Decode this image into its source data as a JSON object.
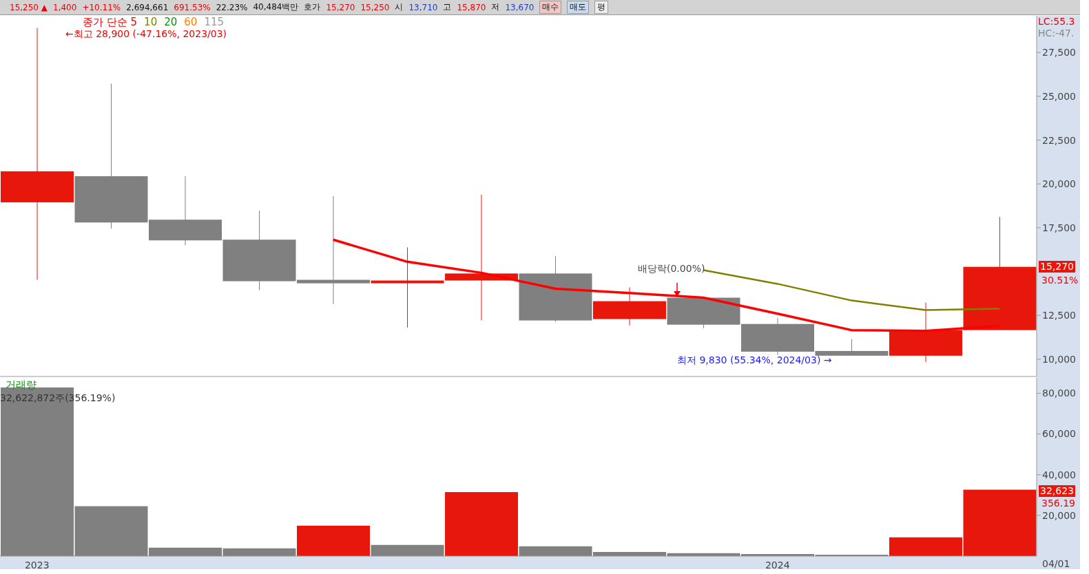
{
  "chart_data": [
    {
      "type": "other",
      "annotations": [
        "15,250 ▲",
        "1,400",
        "+10.11%",
        "2,694,661",
        "691.53%",
        "22.23%",
        "40,484백만",
        "호가",
        "15,270",
        "15,250",
        "시",
        "13,710",
        "고",
        "15,870",
        "저",
        "13,670",
        "매수",
        "매도",
        "평"
      ]
    },
    {
      "type": "candlestick",
      "legend_title": "종가 단순",
      "legend": "top left",
      "tick_labels": "y",
      "categories": [
        "2023",
        null,
        null,
        null,
        null,
        null,
        null,
        null,
        null,
        null,
        "2024",
        null,
        null,
        null
      ],
      "ohlc": [
        [
          18950,
          28900,
          14530,
          20720
        ],
        [
          20440,
          25720,
          17450,
          17800
        ],
        [
          17960,
          20440,
          16500,
          16780
        ],
        [
          16820,
          18470,
          13940,
          14450
        ],
        [
          14530,
          19300,
          13150,
          14330
        ],
        [
          14330,
          16380,
          11810,
          14490
        ],
        [
          14490,
          19380,
          12210,
          14890
        ],
        [
          14890,
          15870,
          12130,
          12210
        ],
        [
          12290,
          14100,
          11930,
          13310
        ],
        [
          13510,
          13510,
          11770,
          11970
        ],
        [
          12010,
          12360,
          10240,
          10430
        ],
        [
          10470,
          11140,
          10200,
          10200
        ],
        [
          10200,
          13230,
          9830,
          11660
        ],
        [
          11660,
          18120,
          11660,
          15270
        ]
      ],
      "colors": [
        "#e8170b",
        "#808080",
        "#808080",
        "#808080",
        "#808080",
        "#e8170b",
        "#e8170b",
        "#808080",
        "#e8170b",
        "#808080",
        "#808080",
        "#808080",
        "#e8170b",
        "#e8170b"
      ],
      "series": [
        {
          "name": "5",
          "type": "line",
          "color": "#ff0000",
          "values": [
            null,
            null,
            null,
            null,
            16820,
            15560,
            14930,
            14020,
            13780,
            13510,
            12600,
            11660,
            11620,
            11900
          ]
        },
        {
          "name": "10",
          "type": "line",
          "color": "#808000",
          "values": [
            null,
            null,
            null,
            null,
            null,
            null,
            null,
            null,
            null,
            15080,
            14300,
            13350,
            12800,
            12880
          ]
        },
        {
          "name": "20",
          "type": "line",
          "color": "#009900",
          "values": [
            null,
            null,
            null,
            null,
            null,
            null,
            null,
            null,
            null,
            null,
            null,
            null,
            null,
            null
          ]
        },
        {
          "name": "60",
          "type": "line",
          "color": "#ff8000",
          "values": [
            null,
            null,
            null,
            null,
            null,
            null,
            null,
            null,
            null,
            null,
            null,
            null,
            null,
            null
          ]
        },
        {
          "name": "115",
          "type": "line",
          "color": "#999999",
          "values": [
            null,
            null,
            null,
            null,
            null,
            null,
            null,
            null,
            null,
            null,
            null,
            null,
            null,
            null
          ]
        }
      ],
      "ylim": [
        9015,
        29590
      ],
      "yticks": [
        {
          "value": 10000,
          "label": "10,000"
        },
        {
          "value": 12500,
          "label": "12,500"
        },
        {
          "value": 17500,
          "label": "17,500"
        },
        {
          "value": 20000,
          "label": "20,000"
        },
        {
          "value": 22500,
          "label": "22,500"
        },
        {
          "value": 25000,
          "label": "25,000"
        },
        {
          "value": 27500,
          "label": "27,500"
        }
      ],
      "annotations": [
        "←최고 28,900 (-47.16%, 2023/03)",
        "최저 9,830 (55.34%, 2024/03) →",
        {
          "text": "배당락(0.00%)",
          "y": 13510
        },
        "LC:55.3",
        "HC:-47.",
        "15,270",
        "30.51%"
      ]
    },
    {
      "type": "bar",
      "title": "거래량",
      "categories": [
        "2023",
        null,
        null,
        null,
        null,
        null,
        null,
        null,
        null,
        null,
        "2024",
        null,
        null,
        null
      ],
      "values": [
        82800,
        24500,
        4100,
        3800,
        15000,
        5500,
        31400,
        4800,
        2000,
        1400,
        1000,
        700,
        9200,
        32623
      ],
      "colors": [
        "#808080",
        "#808080",
        "#808080",
        "#808080",
        "#e8170b",
        "#808080",
        "#e8170b",
        "#808080",
        "#808080",
        "#808080",
        "#808080",
        "#808080",
        "#e8170b",
        "#e8170b"
      ],
      "ylim": [
        0,
        87560
      ],
      "yticks": [
        {
          "value": 20000,
          "label": "20,000"
        },
        {
          "value": 40000,
          "label": "40,000"
        },
        {
          "value": 60000,
          "label": "60,000"
        },
        {
          "value": 80000,
          "label": "80,000"
        }
      ],
      "annotations": [
        "32,622,872주(356.19%)",
        "32,623",
        "356.19",
        "04/01"
      ]
    }
  ]
}
